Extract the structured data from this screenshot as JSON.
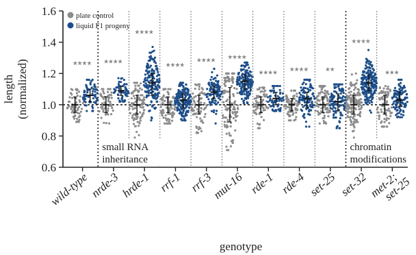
{
  "chart_data": {
    "type": "scatter",
    "xlabel": "genotype",
    "ylabel_line1": "length",
    "ylabel_line2": "(normalized)",
    "ylim": [
      0.6,
      1.6
    ],
    "yticks": [
      "0.6",
      "0.8",
      "1.0",
      "1.2",
      "1.4",
      "1.6"
    ],
    "reference_line": 1.0,
    "categories": [
      "wild-type",
      "nrde-3",
      "hrde-1",
      "rrf-1",
      "rrf-3",
      "mut-16",
      "rde-1",
      "rde-4",
      "set-25",
      "set-32",
      "met-2;\nset-25"
    ],
    "category_labels": [
      {
        "line1": "wild-type",
        "line2": ""
      },
      {
        "line1": "nrde-3",
        "line2": ""
      },
      {
        "line1": "hrde-1",
        "line2": ""
      },
      {
        "line1": "rrf-1",
        "line2": ""
      },
      {
        "line1": "rrf-3",
        "line2": ""
      },
      {
        "line1": "mut-16",
        "line2": ""
      },
      {
        "line1": "rde-1",
        "line2": ""
      },
      {
        "line1": "rde-4",
        "line2": ""
      },
      {
        "line1": "set-25",
        "line2": ""
      },
      {
        "line1": "set-32",
        "line2": ""
      },
      {
        "line1": "met-2;",
        "line2": "set-25"
      }
    ],
    "series": [
      {
        "name": "plate control",
        "color": "#8c8c8c",
        "median": [
          1.0,
          1.0,
          1.0,
          1.0,
          1.0,
          1.0,
          1.0,
          1.0,
          1.0,
          1.0,
          1.0
        ],
        "lower": [
          0.95,
          0.95,
          0.94,
          0.95,
          0.94,
          0.89,
          0.95,
          0.96,
          0.95,
          0.94,
          0.94
        ],
        "upper": [
          1.05,
          1.05,
          1.06,
          1.05,
          1.06,
          1.11,
          1.05,
          1.04,
          1.05,
          1.06,
          1.06
        ],
        "min": [
          0.89,
          0.88,
          0.79,
          0.88,
          0.82,
          0.71,
          0.85,
          0.9,
          0.88,
          0.79,
          0.86
        ],
        "max": [
          1.1,
          1.1,
          1.14,
          1.1,
          1.13,
          1.2,
          1.11,
          1.09,
          1.12,
          1.2,
          1.12
        ],
        "n": [
          70,
          60,
          110,
          90,
          80,
          120,
          70,
          80,
          90,
          150,
          80
        ]
      },
      {
        "name": "liquid F1 progeny",
        "color": "#1d4e89",
        "median": [
          1.06,
          1.09,
          1.14,
          1.03,
          1.08,
          1.15,
          1.04,
          1.04,
          1.02,
          1.14,
          1.03
        ],
        "lower": [
          1.02,
          1.06,
          1.06,
          0.98,
          1.04,
          1.1,
          1.0,
          0.98,
          0.96,
          1.09,
          0.99
        ],
        "upper": [
          1.1,
          1.12,
          1.2,
          1.07,
          1.12,
          1.19,
          1.08,
          1.08,
          1.07,
          1.19,
          1.08
        ],
        "min": [
          0.96,
          1.02,
          0.9,
          0.9,
          0.88,
          1.01,
          0.96,
          0.86,
          0.85,
          0.95,
          0.92
        ],
        "max": [
          1.16,
          1.17,
          1.37,
          1.14,
          1.23,
          1.27,
          1.12,
          1.16,
          1.13,
          1.35,
          1.16
        ],
        "n": [
          70,
          60,
          170,
          180,
          110,
          170,
          70,
          100,
          120,
          200,
          110
        ]
      }
    ],
    "significance": [
      "****",
      "****",
      "****",
      "****",
      "****",
      "****",
      "****",
      "****",
      "**",
      "****",
      "***"
    ],
    "significance_y": [
      1.26,
      1.27,
      1.46,
      1.25,
      1.28,
      1.3,
      1.2,
      1.22,
      1.22,
      1.4,
      1.2
    ],
    "group_annotations": [
      {
        "text_line1": "small RNA",
        "text_line2": "inheritance",
        "category_index": 1
      },
      {
        "text_line1": "chromatin",
        "text_line2": "modifications",
        "category_index": 9
      }
    ],
    "legend": {
      "placement": "top-left",
      "entries": [
        "plate control",
        "liquid F1 progeny"
      ]
    },
    "grid": false
  }
}
